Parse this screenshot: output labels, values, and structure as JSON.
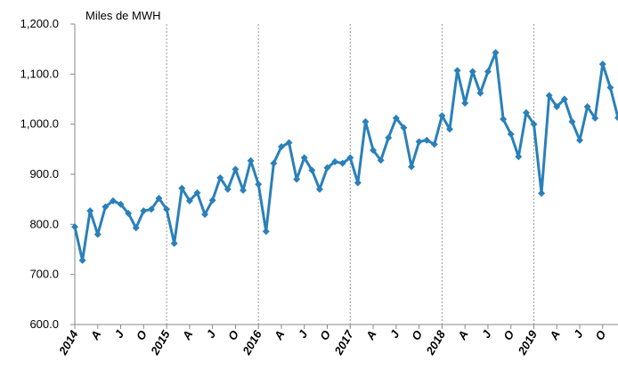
{
  "chart_data": {
    "type": "line",
    "annotation": "Miles de MWH",
    "categories": [
      "2014",
      null,
      null,
      "A",
      null,
      null,
      "J",
      null,
      null,
      "O",
      null,
      null,
      "2015",
      null,
      null,
      "A",
      null,
      null,
      "J",
      null,
      null,
      "O",
      null,
      null,
      "2016",
      null,
      null,
      "A",
      null,
      null,
      "J",
      null,
      null,
      "O",
      null,
      null,
      "2017",
      null,
      null,
      "A",
      null,
      null,
      "J",
      null,
      null,
      "O",
      null,
      null,
      "2018",
      null,
      null,
      "A",
      null,
      null,
      "J",
      null,
      null,
      "O",
      null,
      null,
      "2019",
      null,
      null,
      "A",
      null,
      null,
      "J",
      null,
      null,
      "O",
      null,
      null
    ],
    "series": [
      {
        "color": "#2a80b9",
        "values": [
          795,
          728,
          827,
          780,
          835,
          847,
          840,
          822,
          793,
          827,
          830,
          852,
          830,
          762,
          872,
          847,
          863,
          820,
          848,
          893,
          870,
          910,
          868,
          927,
          880,
          786,
          922,
          955,
          963,
          890,
          933,
          908,
          870,
          913,
          925,
          922,
          933,
          883,
          1005,
          948,
          928,
          973,
          1012,
          993,
          915,
          965,
          968,
          960,
          1017,
          990,
          1107,
          1042,
          1105,
          1062,
          1105,
          1143,
          1010,
          980,
          935,
          1023,
          1000,
          862,
          1057,
          1035,
          1050,
          1005,
          968,
          1035,
          1012,
          1120,
          1073,
          1013
        ]
      }
    ],
    "ylim": [
      600,
      1200
    ],
    "yticks": [
      {
        "value": 600,
        "label": "600.0"
      },
      {
        "value": 700,
        "label": "700.0"
      },
      {
        "value": 800,
        "label": "800.0"
      },
      {
        "value": 900,
        "label": "900.0"
      },
      {
        "value": 1000,
        "label": "1,000.0"
      },
      {
        "value": 1100,
        "label": "1,100.0"
      },
      {
        "value": 1200,
        "label": "1,200.0"
      }
    ],
    "grid": "year-dashed"
  }
}
